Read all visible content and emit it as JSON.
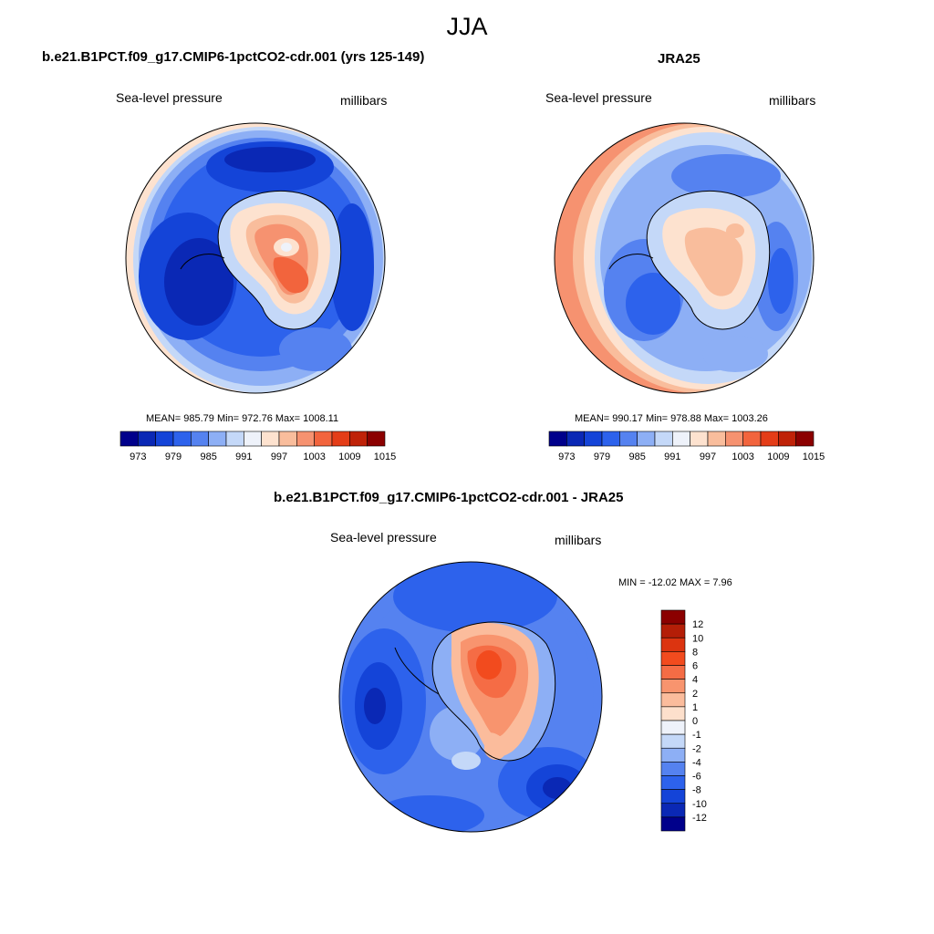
{
  "figure": {
    "season": "JJA"
  },
  "panels": [
    {
      "title": "b.e21.B1PCT.f09_g17.CMIP6-1pctCO2-cdr.001 (yrs 125-149)",
      "left_label": "Sea-level pressure",
      "right_label": "millibars",
      "stats": "MEAN= 985.79  Min= 972.76  Max= 1008.11"
    },
    {
      "title": "JRA25",
      "left_label": "Sea-level pressure",
      "right_label": "millibars",
      "stats": "MEAN= 990.17  Min= 978.88  Max= 1003.26"
    },
    {
      "title": "b.e21.B1PCT.f09_g17.CMIP6-1pctCO2-cdr.001 - JRA25",
      "left_label": "Sea-level pressure",
      "right_label": "millibars",
      "stats": "MIN = -12.02 MAX =   7.96"
    }
  ],
  "colorbar_abs": {
    "tick_labels": [
      "973",
      "979",
      "985",
      "991",
      "997",
      "1003",
      "1009",
      "1015"
    ],
    "colors": [
      "#00008b",
      "#0a28b5",
      "#1444d8",
      "#2d62ec",
      "#5582f0",
      "#8daff5",
      "#c4d8f8",
      "#eef2fa",
      "#fde2cf",
      "#f9bd9c",
      "#f69270",
      "#f2643d",
      "#e43d18",
      "#bf2208",
      "#8b0000"
    ]
  },
  "colorbar_diff": {
    "tick_labels": [
      "12",
      "10",
      "8",
      "6",
      "4",
      "2",
      "1",
      "0",
      "-1",
      "-2",
      "-4",
      "-6",
      "-8",
      "-10",
      "-12"
    ],
    "colors": [
      "#8b0000",
      "#b41e07",
      "#dc3410",
      "#f24b1e",
      "#f56c45",
      "#f8946e",
      "#fbbc9c",
      "#fde0cc",
      "#eef2fa",
      "#c4d8f8",
      "#8daff5",
      "#5582f0",
      "#2d62ec",
      "#1444d8",
      "#0a28b5",
      "#00008b"
    ]
  },
  "map_colors": {
    "ocean_blue": "#2d62ec",
    "ocean_mid": "#5582f0",
    "ocean_light": "#8daff5",
    "ocean_pale": "#c4d8f8",
    "deep_blue": "#0a28b5",
    "warm_pale": "#fde2cf",
    "warm": "#f9bd9c",
    "warm_strong": "#f2643d"
  }
}
